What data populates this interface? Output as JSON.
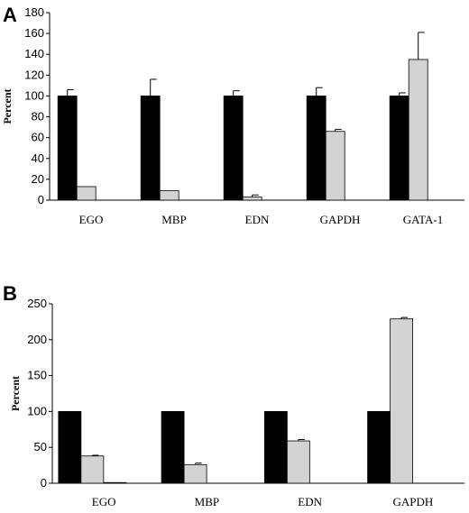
{
  "chart_data": [
    {
      "panel": "A",
      "type": "bar",
      "ylabel": "Percent",
      "ylim": [
        0,
        180
      ],
      "yticks": [
        0,
        20,
        40,
        60,
        80,
        100,
        120,
        140,
        160,
        180
      ],
      "categories": [
        "EGO",
        "MBP",
        "EDN",
        "GAPDH",
        "GATA-1"
      ],
      "series": [
        {
          "color": "#000000",
          "values": [
            100,
            100,
            100,
            100,
            100
          ],
          "errors": [
            6,
            16,
            5,
            8,
            3
          ]
        },
        {
          "color": "#d3d3d3",
          "values": [
            13,
            9,
            3,
            66,
            135
          ],
          "errors": [
            0,
            0,
            2,
            2,
            26
          ]
        }
      ]
    },
    {
      "panel": "B",
      "type": "bar",
      "ylabel": "Percent",
      "ylim": [
        0,
        250
      ],
      "yticks": [
        0,
        50,
        100,
        150,
        200,
        250
      ],
      "categories": [
        "EGO",
        "MBP",
        "EDN",
        "GAPDH"
      ],
      "series": [
        {
          "color": "#000000",
          "values": [
            100,
            100,
            100,
            100
          ],
          "errors": [
            0,
            0,
            0,
            0
          ]
        },
        {
          "color": "#d3d3d3",
          "values": [
            38,
            26,
            59,
            229
          ],
          "errors": [
            1,
            2,
            2,
            2
          ]
        },
        {
          "color": "#d3d3d3",
          "values": [
            1,
            0,
            0,
            0
          ],
          "errors": [
            0,
            0,
            0,
            0
          ]
        }
      ]
    }
  ]
}
